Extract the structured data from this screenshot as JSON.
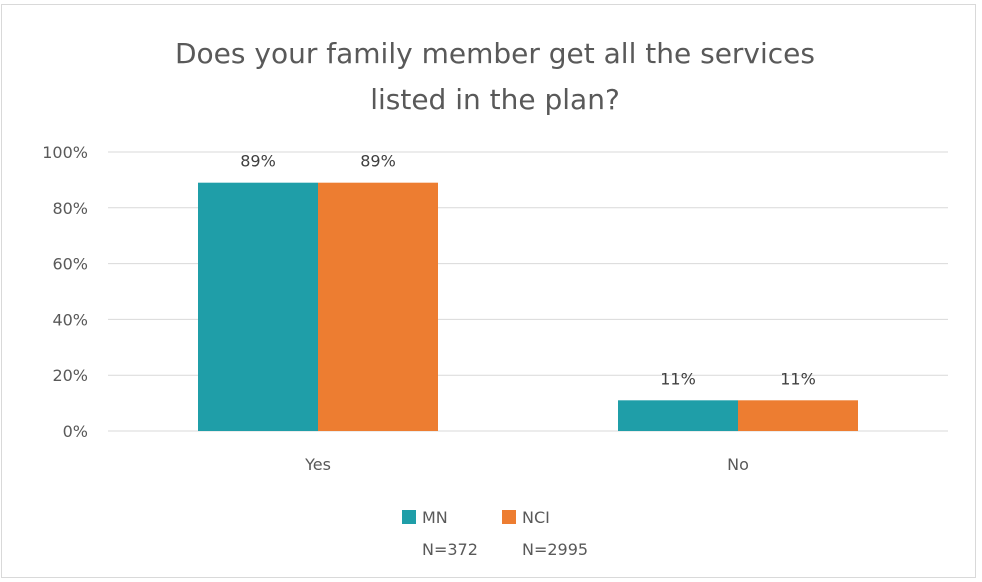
{
  "chart_data": {
    "type": "bar",
    "title_lines": [
      "Does your family member get all the services",
      "listed in the plan?"
    ],
    "categories": [
      "Yes",
      "No"
    ],
    "series": [
      {
        "name": "MN",
        "note": "N=372",
        "color": "#1f9ea8",
        "values": [
          89,
          11
        ],
        "labels": [
          "89%",
          "11%"
        ]
      },
      {
        "name": "NCI",
        "note": "N=2995",
        "color": "#ed7d31",
        "values": [
          89,
          11
        ],
        "labels": [
          "89%",
          "11%"
        ]
      }
    ],
    "ylim": [
      0,
      100
    ],
    "yticks": [
      0,
      20,
      40,
      60,
      80,
      100
    ],
    "ytick_labels": [
      "0%",
      "20%",
      "40%",
      "60%",
      "80%",
      "100%"
    ],
    "grid": true,
    "legend_position": "bottom-center",
    "xlabel": "",
    "ylabel": ""
  }
}
